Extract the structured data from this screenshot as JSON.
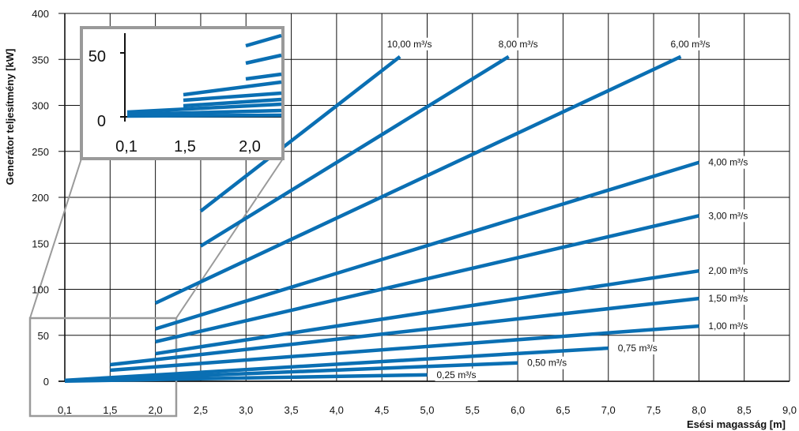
{
  "chart_data": {
    "type": "line",
    "xlabel": "Esési magasság [m]",
    "ylabel": "Generátor teljesítmény   [kW]",
    "xlim": [
      0.1,
      9.0
    ],
    "ylim": [
      0,
      400
    ],
    "grid": true,
    "x_ticks": [
      {
        "v": 0.1,
        "label": "0,1"
      },
      {
        "v": 1.5,
        "label": "1,5"
      },
      {
        "v": 2.0,
        "label": "2,0"
      },
      {
        "v": 2.5,
        "label": "2,5"
      },
      {
        "v": 3.0,
        "label": "3,0"
      },
      {
        "v": 3.5,
        "label": "3,5"
      },
      {
        "v": 4.0,
        "label": "4,0"
      },
      {
        "v": 4.5,
        "label": "4,5"
      },
      {
        "v": 5.0,
        "label": "5,0"
      },
      {
        "v": 5.5,
        "label": "5,5"
      },
      {
        "v": 6.0,
        "label": "6,0"
      },
      {
        "v": 6.5,
        "label": "6,5"
      },
      {
        "v": 7.0,
        "label": "7,0"
      },
      {
        "v": 7.5,
        "label": "7,5"
      },
      {
        "v": 8.0,
        "label": "8,0"
      },
      {
        "v": 8.5,
        "label": "8,5"
      },
      {
        "v": 9.0,
        "label": "9,0"
      }
    ],
    "y_ticks": [
      {
        "v": 0,
        "label": "0"
      },
      {
        "v": 50,
        "label": "50"
      },
      {
        "v": 100,
        "label": "100"
      },
      {
        "v": 150,
        "label": "150"
      },
      {
        "v": 200,
        "label": "200"
      },
      {
        "v": 250,
        "label": "250"
      },
      {
        "v": 300,
        "label": "300"
      },
      {
        "v": 350,
        "label": "350"
      },
      {
        "v": 400,
        "label": "400"
      }
    ],
    "series": [
      {
        "name": "10,00 m³/s",
        "x": [
          2.5,
          4.7
        ],
        "y": [
          185,
          353
        ]
      },
      {
        "name": "8,00 m³/s",
        "x": [
          2.5,
          5.9
        ],
        "y": [
          147,
          353
        ]
      },
      {
        "name": "6,00 m³/s",
        "x": [
          2.0,
          7.8
        ],
        "y": [
          85,
          353
        ]
      },
      {
        "name": "4,00 m³/s",
        "x": [
          2.0,
          8.0
        ],
        "y": [
          57,
          238
        ]
      },
      {
        "name": "3,00 m³/s",
        "x": [
          2.0,
          8.0
        ],
        "y": [
          43,
          180
        ]
      },
      {
        "name": "2,00 m³/s",
        "x": [
          2.0,
          8.0
        ],
        "y": [
          30,
          120
        ]
      },
      {
        "name": "1,50 m³/s",
        "x": [
          1.5,
          8.0
        ],
        "y": [
          18,
          90
        ]
      },
      {
        "name": "1,00 m³/s",
        "x": [
          1.5,
          8.0
        ],
        "y": [
          12,
          60
        ]
      },
      {
        "name": "0,75 m³/s",
        "x": [
          0.1,
          7.0
        ],
        "y": [
          1,
          36
        ]
      },
      {
        "name": "0,50 m³/s",
        "x": [
          0.1,
          6.0
        ],
        "y": [
          0.5,
          20
        ]
      },
      {
        "name": "0,25 m³/s",
        "x": [
          0.1,
          5.0
        ],
        "y": [
          0.2,
          7
        ]
      }
    ],
    "inset": {
      "x_ticks": [
        {
          "v": 0.1,
          "label": "0,1"
        },
        {
          "v": 1.5,
          "label": "1,5"
        },
        {
          "v": 2.0,
          "label": "2,0"
        }
      ],
      "y_ticks": [
        {
          "v": 0,
          "label": "0"
        },
        {
          "v": 50,
          "label": "50"
        }
      ]
    },
    "colors": {
      "line": "#0a6fb3",
      "grid": "#111111",
      "inset_frame": "#9a9a9a"
    }
  }
}
